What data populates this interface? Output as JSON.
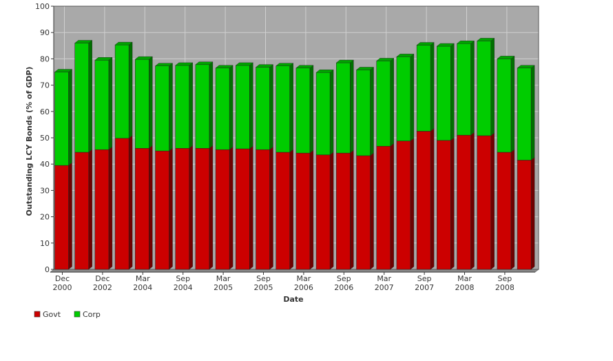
{
  "chart_data": {
    "type": "bar",
    "stacked": true,
    "title": "",
    "xlabel": "Date",
    "ylabel": "Outstanding LCY Bonds (% of GDP)",
    "ylim": [
      0,
      100
    ],
    "yticks": [
      0,
      10,
      20,
      30,
      40,
      50,
      60,
      70,
      80,
      90,
      100
    ],
    "grid": true,
    "legend_position": "bottom-left",
    "x_tick_labels": [
      {
        "index": 0,
        "line1": "Dec",
        "line2": "2000"
      },
      {
        "index": 2,
        "line1": "Dec",
        "line2": "2002"
      },
      {
        "index": 4,
        "line1": "Mar",
        "line2": "2004"
      },
      {
        "index": 6,
        "line1": "Sep",
        "line2": "2004"
      },
      {
        "index": 8,
        "line1": "Mar",
        "line2": "2005"
      },
      {
        "index": 10,
        "line1": "Sep",
        "line2": "2005"
      },
      {
        "index": 12,
        "line1": "Mar",
        "line2": "2006"
      },
      {
        "index": 14,
        "line1": "Sep",
        "line2": "2006"
      },
      {
        "index": 16,
        "line1": "Mar",
        "line2": "2007"
      },
      {
        "index": 18,
        "line1": "Sep",
        "line2": "2007"
      },
      {
        "index": 20,
        "line1": "Mar",
        "line2": "2008"
      },
      {
        "index": 22,
        "line1": "Sep",
        "line2": "2008"
      }
    ],
    "series": [
      {
        "name": "Govt",
        "color": "#cc0000",
        "values": [
          39.5,
          44.5,
          45.5,
          49.8,
          46.0,
          45.0,
          46.0,
          46.0,
          45.5,
          45.8,
          45.5,
          44.5,
          44.2,
          43.5,
          44.2,
          43.2,
          46.8,
          48.8,
          52.5,
          49.0,
          51.0,
          50.8,
          44.5,
          41.5
        ]
      },
      {
        "name": "Corp",
        "color": "#00cc00",
        "values": [
          35.5,
          41.5,
          34.0,
          35.5,
          33.8,
          32.3,
          31.5,
          31.8,
          31.0,
          31.7,
          31.3,
          32.8,
          32.3,
          31.3,
          34.3,
          32.6,
          32.4,
          32.0,
          32.7,
          35.8,
          34.8,
          36.0,
          35.5,
          35.0
        ]
      }
    ]
  }
}
